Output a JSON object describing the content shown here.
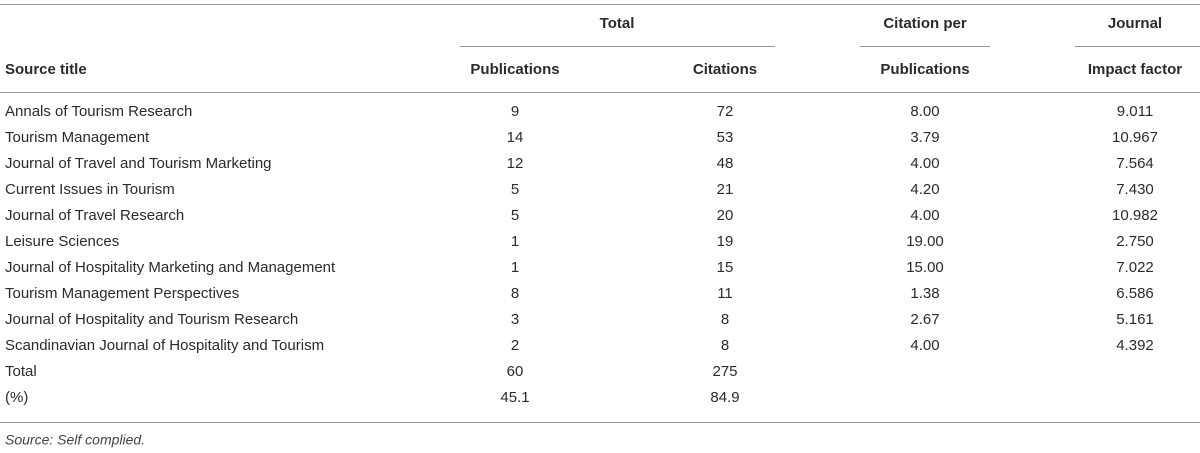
{
  "table": {
    "group_headers": [
      "Total",
      "Citation per",
      "Journal"
    ],
    "columns": [
      "Source title",
      "Publications",
      "Citations",
      "Publications",
      "Impact factor"
    ],
    "rows": [
      [
        "Annals of Tourism Research",
        "9",
        "72",
        "8.00",
        "9.011"
      ],
      [
        "Tourism Management",
        "14",
        "53",
        "3.79",
        "10.967"
      ],
      [
        "Journal of Travel and Tourism Marketing",
        "12",
        "48",
        "4.00",
        "7.564"
      ],
      [
        "Current Issues in Tourism",
        "5",
        "21",
        "4.20",
        "7.430"
      ],
      [
        "Journal of Travel Research",
        "5",
        "20",
        "4.00",
        "10.982"
      ],
      [
        "Leisure Sciences",
        "1",
        "19",
        "19.00",
        "2.750"
      ],
      [
        "Journal of Hospitality Marketing and Management",
        "1",
        "15",
        "15.00",
        "7.022"
      ],
      [
        "Tourism Management Perspectives",
        "8",
        "11",
        "1.38",
        "6.586"
      ],
      [
        "Journal of Hospitality and Tourism Research",
        "3",
        "8",
        "2.67",
        "5.161"
      ],
      [
        "Scandinavian Journal of Hospitality and Tourism",
        "2",
        "8",
        "4.00",
        "4.392"
      ],
      [
        "Total",
        "60",
        "275"
      ],
      [
        "(%)",
        "45.1",
        "84.9"
      ]
    ],
    "source": "Source: Self complied."
  }
}
